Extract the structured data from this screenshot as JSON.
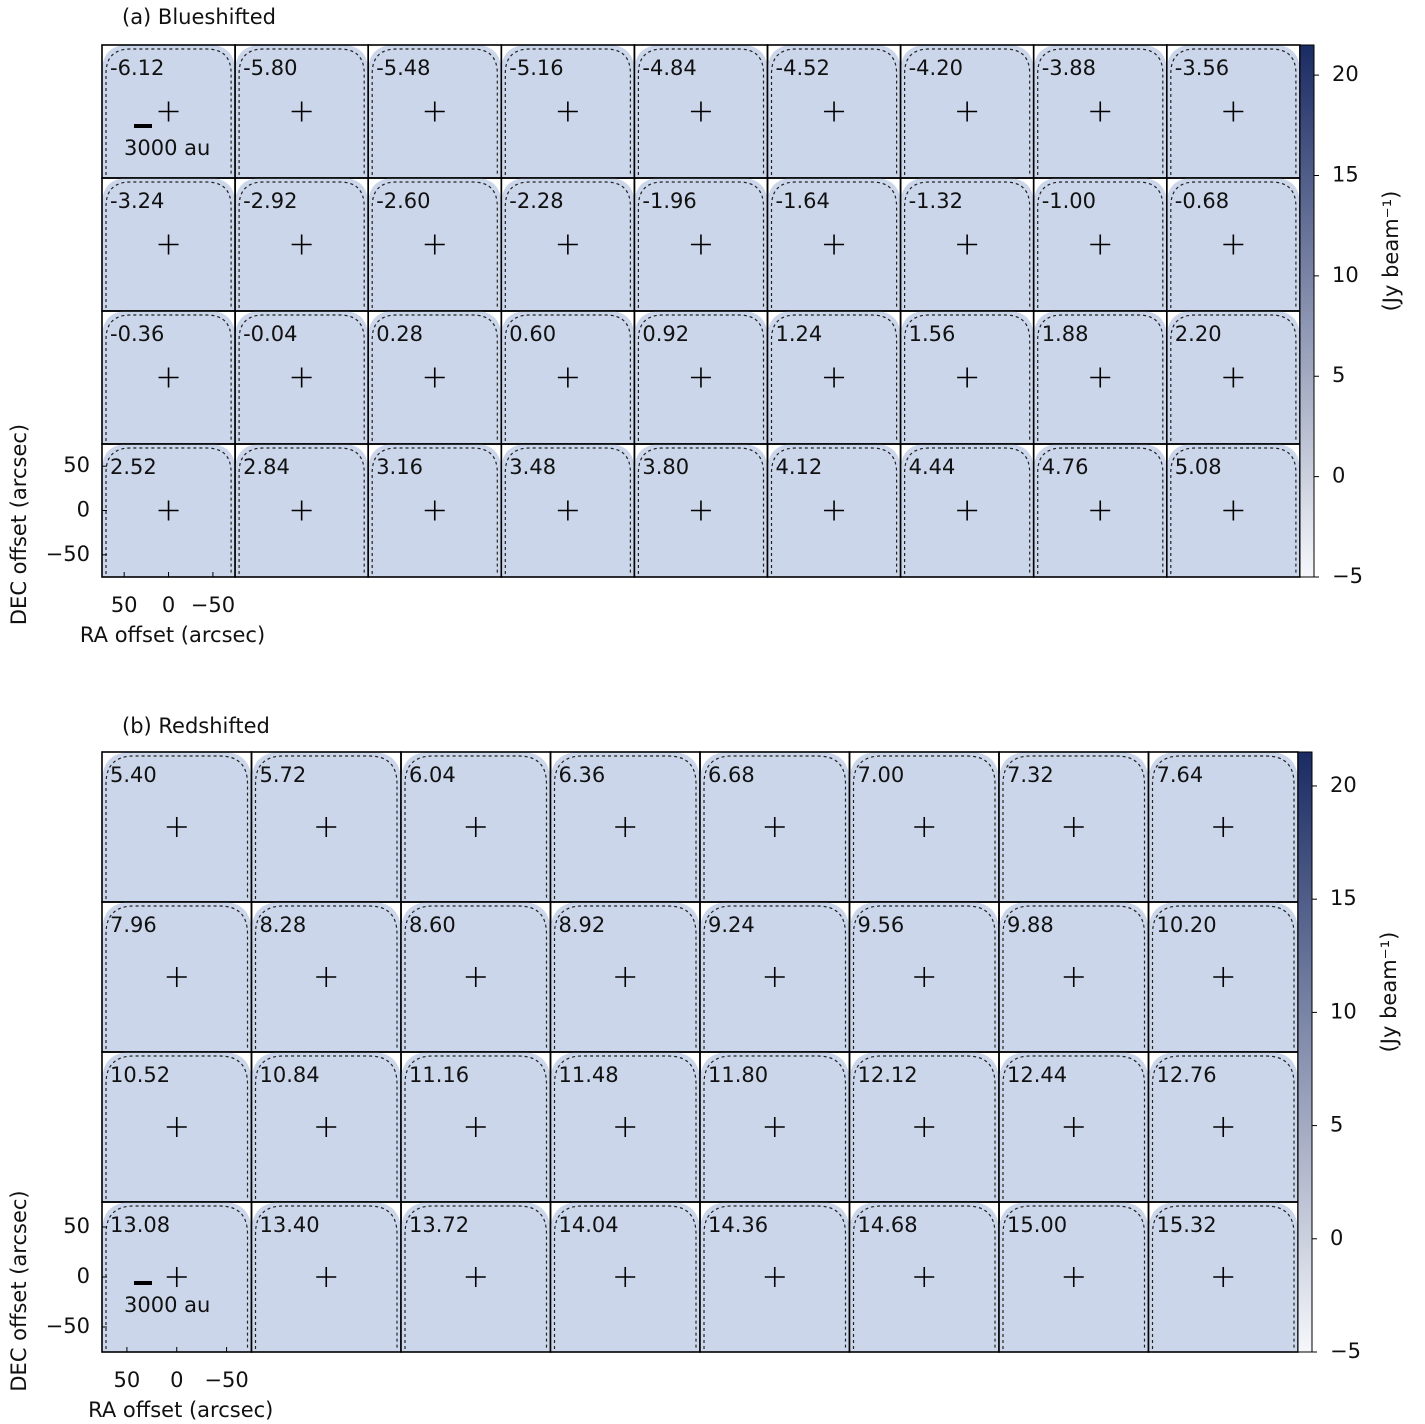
{
  "chart_data": [
    {
      "type": "channel-map",
      "title": "(a) Blueshifted",
      "channels": [
        "-6.12",
        "-5.80",
        "-5.48",
        "-5.16",
        "-4.84",
        "-4.52",
        "-4.20",
        "-3.88",
        "-3.56",
        "-3.24",
        "-2.92",
        "-2.60",
        "-2.28",
        "-1.96",
        "-1.64",
        "-1.32",
        "-1.00",
        "-0.68",
        "-0.36",
        "-0.04",
        "0.28",
        "0.60",
        "0.92",
        "1.24",
        "1.56",
        "1.88",
        "2.20",
        "2.52",
        "2.84",
        "3.16",
        "3.48",
        "3.80",
        "4.12",
        "4.44",
        "4.76",
        "5.08"
      ],
      "xlabel": "RA offset (arcsec)",
      "ylabel": "DEC offset (arcsec)",
      "xlim": [
        75,
        -75
      ],
      "ylim": [
        -75,
        75
      ],
      "xticks": [
        50,
        0,
        {
          "value": -50,
          "label": "−50"
        }
      ],
      "yticks": [
        50,
        0,
        {
          "value": -50,
          "label": "−50"
        }
      ],
      "scale_bar": "3000 au",
      "map_color": "#cbd6ea",
      "colorbar": {
        "label": "(Jy beam⁻¹)",
        "lim": [
          -5,
          21.5
        ],
        "ticks": [
          {
            "value": -5,
            "label": "−5"
          },
          0,
          5,
          10,
          15,
          20
        ],
        "colors": [
          "#f5f7fb",
          "#1a2b63"
        ]
      }
    },
    {
      "type": "channel-map",
      "title": "(b) Redshifted",
      "channels": [
        "5.40",
        "5.72",
        "6.04",
        "6.36",
        "6.68",
        "7.00",
        "7.32",
        "7.64",
        "7.96",
        "8.28",
        "8.60",
        "8.92",
        "9.24",
        "9.56",
        "9.88",
        "10.20",
        "10.52",
        "10.84",
        "11.16",
        "11.48",
        "11.80",
        "12.12",
        "12.44",
        "12.76",
        "13.08",
        "13.40",
        "13.72",
        "14.04",
        "14.36",
        "14.68",
        "15.00",
        "15.32"
      ],
      "xlabel": "RA offset (arcsec)",
      "ylabel": "DEC offset (arcsec)",
      "xlim": [
        75,
        -75
      ],
      "ylim": [
        -75,
        75
      ],
      "xticks": [
        50,
        0,
        {
          "value": -50,
          "label": "−50"
        }
      ],
      "yticks": [
        50,
        0,
        {
          "value": -50,
          "label": "−50"
        }
      ],
      "scale_bar": "3000 au",
      "map_color": "#cbd6ea",
      "colorbar": {
        "label": "(Jy beam⁻¹)",
        "lim": [
          -5,
          21.5
        ],
        "ticks": [
          {
            "value": -5,
            "label": "−5"
          },
          0,
          5,
          10,
          15,
          20
        ],
        "colors": [
          "#f5f7fb",
          "#1a2b63"
        ]
      }
    }
  ]
}
